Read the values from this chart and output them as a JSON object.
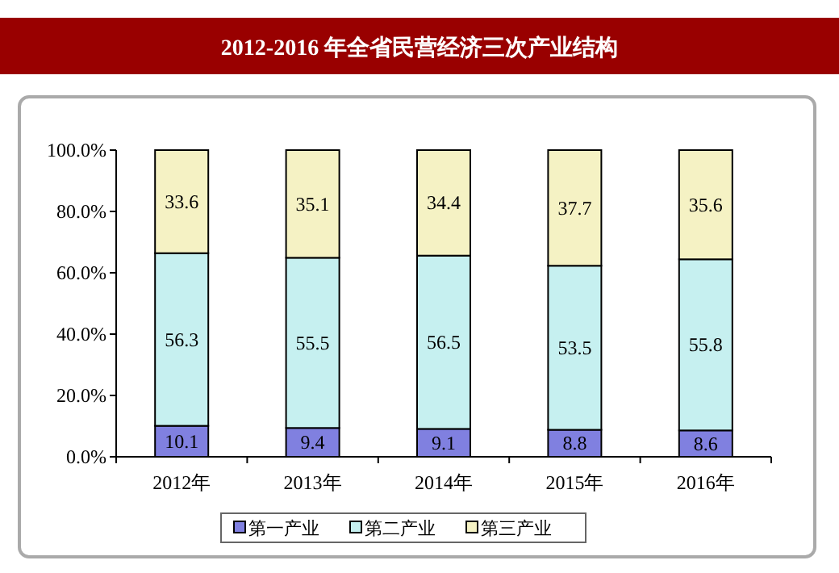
{
  "chart_data": {
    "type": "bar",
    "stacked": true,
    "title": "2012-2016 年全省民营经济三次产业结构",
    "categories": [
      "2012年",
      "2013年",
      "2014年",
      "2015年",
      "2016年"
    ],
    "series": [
      {
        "name": "第一产业",
        "color": "#8080e0",
        "values": [
          10.1,
          9.4,
          9.1,
          8.8,
          8.6
        ]
      },
      {
        "name": "第二产业",
        "color": "#c6f0f0",
        "values": [
          56.3,
          55.5,
          56.5,
          53.5,
          55.8
        ]
      },
      {
        "name": "第三产业",
        "color": "#f5f2c4",
        "values": [
          33.6,
          35.1,
          34.4,
          37.7,
          35.6
        ]
      }
    ],
    "ylim": [
      0,
      100
    ],
    "yticks": [
      {
        "value": 0,
        "label": "0.0%"
      },
      {
        "value": 20,
        "label": "20.0%"
      },
      {
        "value": 40,
        "label": "40.0%"
      },
      {
        "value": 60,
        "label": "60.0%"
      },
      {
        "value": 80,
        "label": "80.0%"
      },
      {
        "value": 100,
        "label": "100.0%"
      }
    ],
    "data_labels": true,
    "grid": false,
    "legend": "bottom"
  }
}
